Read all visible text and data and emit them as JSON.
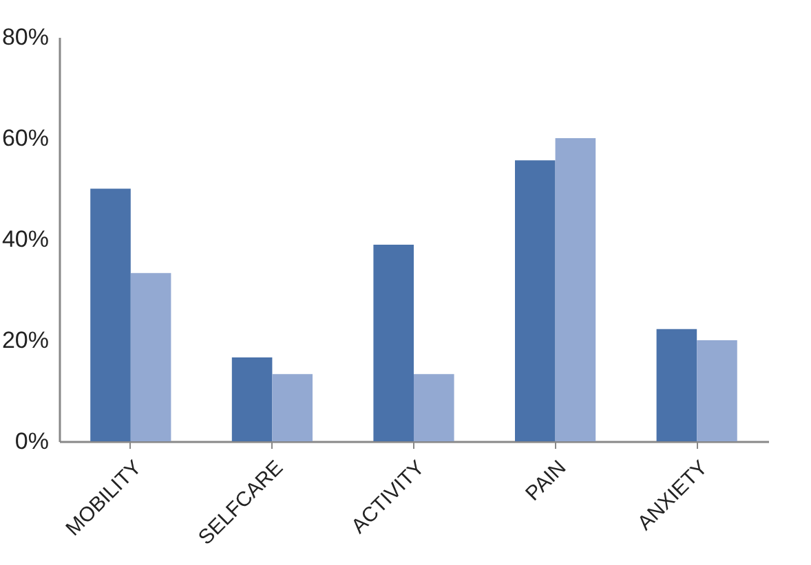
{
  "chart_data": {
    "type": "bar",
    "categories": [
      "MOBILITY",
      "SELFCARE",
      "ACTIVITY",
      "PAIN",
      "ANXIETY"
    ],
    "series": [
      {
        "color": "#4a72aa",
        "values": [
          50,
          16.6,
          38.9,
          55.6,
          22.2
        ]
      },
      {
        "color": "#93a9d2",
        "values": [
          33.3,
          13.3,
          13.3,
          60,
          20
        ]
      }
    ],
    "ylim": [
      0,
      80
    ],
    "yticks": [
      {
        "value": 0,
        "label": "0%"
      },
      {
        "value": 20,
        "label": "20%"
      },
      {
        "value": 40,
        "label": "40%"
      },
      {
        "value": 60,
        "label": "60%"
      },
      {
        "value": 80,
        "label": "80%"
      }
    ],
    "grid": false,
    "legend": false
  }
}
